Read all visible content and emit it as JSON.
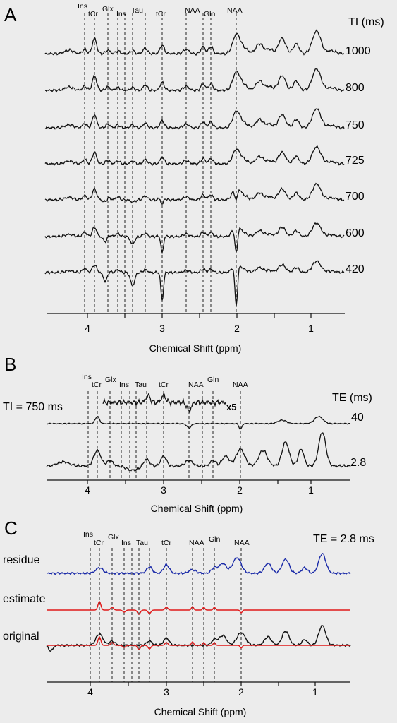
{
  "figure": {
    "panels": [
      {
        "label": "A",
        "peak_labels": [
          "Ins",
          "tCr",
          "Glx",
          "Ins",
          "Tau",
          "tCr",
          "NAA",
          "Gln",
          "NAA"
        ],
        "series_header": "TI (ms)",
        "series_labels": [
          "1000",
          "800",
          "750",
          "725",
          "700",
          "600",
          "420"
        ],
        "xlabel": "Chemical Shift (ppm)",
        "ticks": [
          "4",
          "3",
          "2",
          "1"
        ]
      },
      {
        "label": "B",
        "peak_labels": [
          "Ins",
          "tCr",
          "Glx",
          "Ins",
          "Tau",
          "tCr",
          "NAA",
          "Gln",
          "NAA"
        ],
        "condition": "TI = 750 ms",
        "series_header": "TE (ms)",
        "series_labels": [
          "40",
          "2.8"
        ],
        "zoom_label": "x5",
        "xlabel": "Chemical Shift (ppm)",
        "ticks": [
          "4",
          "3",
          "2",
          "1"
        ]
      },
      {
        "label": "C",
        "peak_labels": [
          "Ins",
          "tCr",
          "Glx",
          "Ins",
          "Tau",
          "tCr",
          "NAA",
          "Gln",
          "NAA"
        ],
        "condition": "TE = 2.8 ms",
        "trace_labels": [
          "residue",
          "estimate",
          "original"
        ],
        "xlabel": "Chemical Shift (ppm)",
        "ticks": [
          "4",
          "3",
          "2",
          "1"
        ]
      }
    ],
    "colors": {
      "residue": "#1a2aa8",
      "estimate": "#e01818",
      "original": "#111111"
    }
  }
}
